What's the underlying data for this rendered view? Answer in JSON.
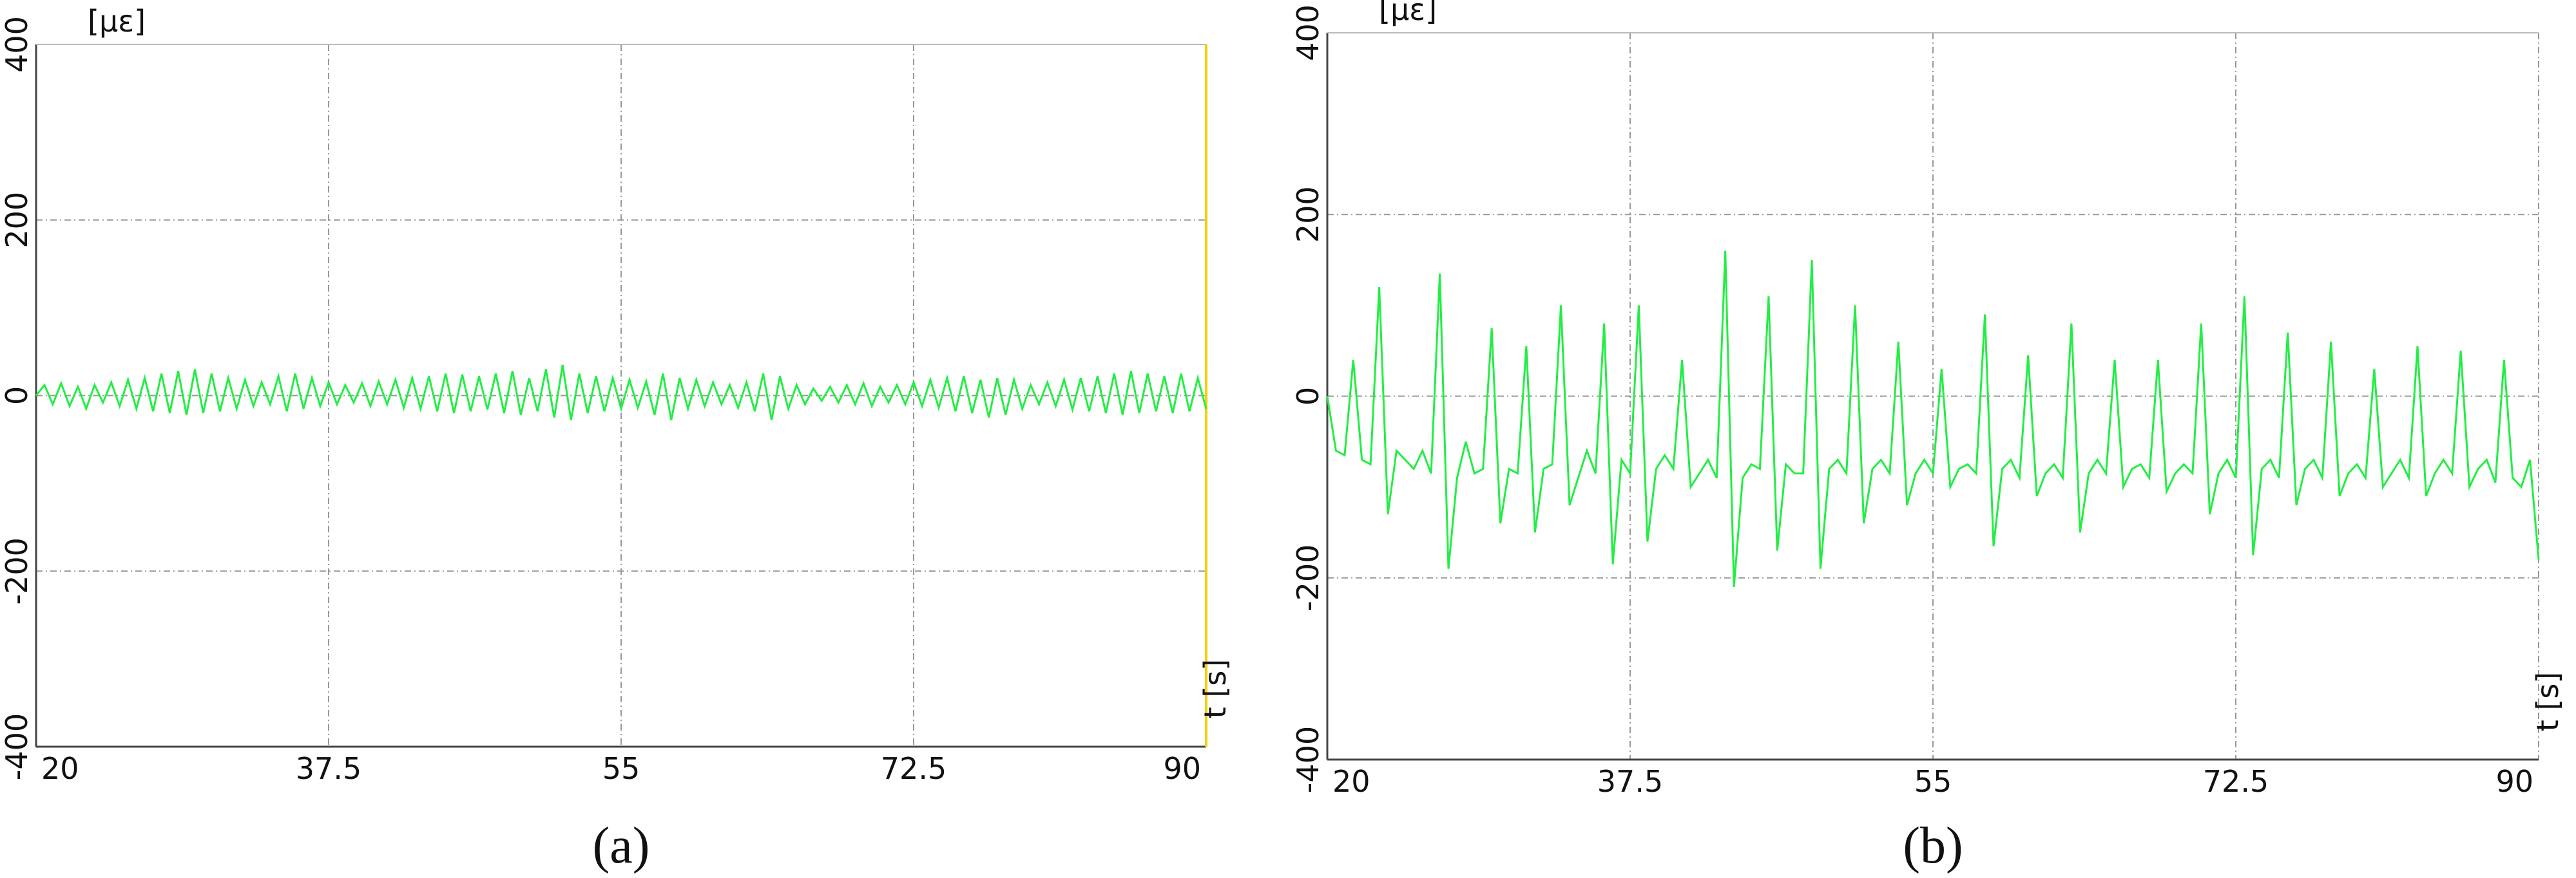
{
  "chart_data": [
    {
      "type": "line",
      "caption": "(a)",
      "ylabel": "[με]",
      "xlabel": "t [s]",
      "color": "#22ee44",
      "xlim": [
        20,
        90
      ],
      "ylim": [
        -400,
        400
      ],
      "xticks": [
        20,
        37.5,
        55,
        72.5,
        90
      ],
      "yticks": [
        -400,
        -200,
        0,
        200,
        400
      ],
      "grid": true,
      "x": [
        20,
        20.5,
        21,
        21.5,
        22,
        22.5,
        23,
        23.5,
        24,
        24.5,
        25,
        25.5,
        26,
        26.5,
        27,
        27.5,
        28,
        28.5,
        29,
        29.5,
        30,
        30.5,
        31,
        31.5,
        32,
        32.5,
        33,
        33.5,
        34,
        34.5,
        35,
        35.5,
        36,
        36.5,
        37,
        37.5,
        38,
        38.5,
        39,
        39.5,
        40,
        40.5,
        41,
        41.5,
        42,
        42.5,
        43,
        43.5,
        44,
        44.5,
        45,
        45.5,
        46,
        46.5,
        47,
        47.5,
        48,
        48.5,
        49,
        49.5,
        50,
        50.5,
        51,
        51.5,
        52,
        52.5,
        53,
        53.5,
        54,
        54.5,
        55,
        55.5,
        56,
        56.5,
        57,
        57.5,
        58,
        58.5,
        59,
        59.5,
        60,
        60.5,
        61,
        61.5,
        62,
        62.5,
        63,
        63.5,
        64,
        64.5,
        65,
        65.5,
        66,
        66.5,
        67,
        67.5,
        68,
        68.5,
        69,
        69.5,
        70,
        70.5,
        71,
        71.5,
        72,
        72.5,
        73,
        73.5,
        74,
        74.5,
        75,
        75.5,
        76,
        76.5,
        77,
        77.5,
        78,
        78.5,
        79,
        79.5,
        80,
        80.5,
        81,
        81.5,
        82,
        82.5,
        83,
        83.5,
        84,
        84.5,
        85,
        85.5,
        86,
        86.5,
        87,
        87.5,
        88,
        88.5,
        89,
        89.5,
        90
      ],
      "values": [
        0,
        12,
        -10,
        14,
        -12,
        10,
        -15,
        12,
        -8,
        15,
        -12,
        18,
        -15,
        20,
        -18,
        25,
        -20,
        28,
        -22,
        30,
        -20,
        25,
        -18,
        20,
        -15,
        18,
        -12,
        15,
        -10,
        22,
        -18,
        25,
        -15,
        20,
        -12,
        15,
        -10,
        12,
        -8,
        14,
        -12,
        16,
        -10,
        18,
        -14,
        20,
        -15,
        22,
        -18,
        25,
        -20,
        24,
        -18,
        22,
        -16,
        25,
        -20,
        28,
        -22,
        20,
        -18,
        30,
        -25,
        35,
        -28,
        25,
        -20,
        22,
        -18,
        20,
        -15,
        18,
        -14,
        16,
        -22,
        25,
        -28,
        20,
        -15,
        18,
        -12,
        15,
        -10,
        12,
        -14,
        15,
        -18,
        25,
        -28,
        22,
        -15,
        12,
        -10,
        8,
        -6,
        10,
        -8,
        12,
        -10,
        14,
        -12,
        10,
        -8,
        12,
        -10,
        15,
        -12,
        18,
        -14,
        20,
        -18,
        22,
        -20,
        18,
        -25,
        20,
        -22,
        18,
        -15,
        12,
        -10,
        15,
        -12,
        18,
        -16,
        20,
        -18,
        22,
        -20,
        25,
        -22,
        28,
        -20,
        25,
        -18,
        22,
        -20,
        25,
        -18,
        20,
        -15
      ]
    },
    {
      "type": "line",
      "caption": "(b)",
      "ylabel": "[με]",
      "xlabel": "t [s]",
      "color": "#22ee44",
      "xlim": [
        20,
        90
      ],
      "ylim": [
        -400,
        400
      ],
      "xticks": [
        20,
        37.5,
        55,
        72.5,
        90
      ],
      "yticks": [
        -400,
        -200,
        0,
        200,
        400
      ],
      "grid": true,
      "x": [
        20,
        20.5,
        21,
        21.5,
        22,
        22.5,
        23,
        23.5,
        24,
        24.5,
        25,
        25.5,
        26,
        26.5,
        27,
        27.5,
        28,
        28.5,
        29,
        29.5,
        30,
        30.5,
        31,
        31.5,
        32,
        32.5,
        33,
        33.5,
        34,
        34.5,
        35,
        35.5,
        36,
        36.5,
        37,
        37.5,
        38,
        38.5,
        39,
        39.5,
        40,
        40.5,
        41,
        41.5,
        42,
        42.5,
        43,
        43.5,
        44,
        44.5,
        45,
        45.5,
        46,
        46.5,
        47,
        47.5,
        48,
        48.5,
        49,
        49.5,
        50,
        50.5,
        51,
        51.5,
        52,
        52.5,
        53,
        53.5,
        54,
        54.5,
        55,
        55.5,
        56,
        56.5,
        57,
        57.5,
        58,
        58.5,
        59,
        59.5,
        60,
        60.5,
        61,
        61.5,
        62,
        62.5,
        63,
        63.5,
        64,
        64.5,
        65,
        65.5,
        66,
        66.5,
        67,
        67.5,
        68,
        68.5,
        69,
        69.5,
        70,
        70.5,
        71,
        71.5,
        72,
        72.5,
        73,
        73.5,
        74,
        74.5,
        75,
        75.5,
        76,
        76.5,
        77,
        77.5,
        78,
        78.5,
        79,
        79.5,
        80,
        80.5,
        81,
        81.5,
        82,
        82.5,
        83,
        83.5,
        84,
        84.5,
        85,
        85.5,
        86,
        86.5,
        87,
        87.5,
        88,
        88.5,
        89,
        89.5,
        90
      ],
      "values": [
        0,
        -60,
        -65,
        40,
        -70,
        -75,
        120,
        -130,
        -60,
        -70,
        -80,
        -60,
        -85,
        135,
        -190,
        -90,
        -50,
        -85,
        -80,
        75,
        -140,
        -80,
        -85,
        55,
        -150,
        -80,
        -75,
        100,
        -120,
        -90,
        -60,
        -85,
        80,
        -185,
        -70,
        -85,
        100,
        -160,
        -80,
        -65,
        -80,
        40,
        -100,
        -85,
        -70,
        -90,
        160,
        -210,
        -90,
        -75,
        -80,
        110,
        -170,
        -75,
        -85,
        -85,
        150,
        -190,
        -80,
        -70,
        -85,
        100,
        -140,
        -80,
        -70,
        -85,
        60,
        -120,
        -85,
        -70,
        -85,
        30,
        -100,
        -80,
        -75,
        -85,
        90,
        -165,
        -80,
        -70,
        -90,
        45,
        -110,
        -85,
        -75,
        -90,
        80,
        -150,
        -85,
        -70,
        -85,
        40,
        -100,
        -80,
        -75,
        -90,
        40,
        -105,
        -85,
        -75,
        -85,
        80,
        -130,
        -85,
        -70,
        -90,
        110,
        -175,
        -80,
        -70,
        -90,
        70,
        -120,
        -80,
        -70,
        -90,
        60,
        -110,
        -85,
        -75,
        -90,
        30,
        -100,
        -85,
        -70,
        -90,
        55,
        -110,
        -85,
        -70,
        -85,
        50,
        -100,
        -80,
        -70,
        -95,
        40,
        -90,
        -100,
        -70,
        -180
      ]
    }
  ]
}
